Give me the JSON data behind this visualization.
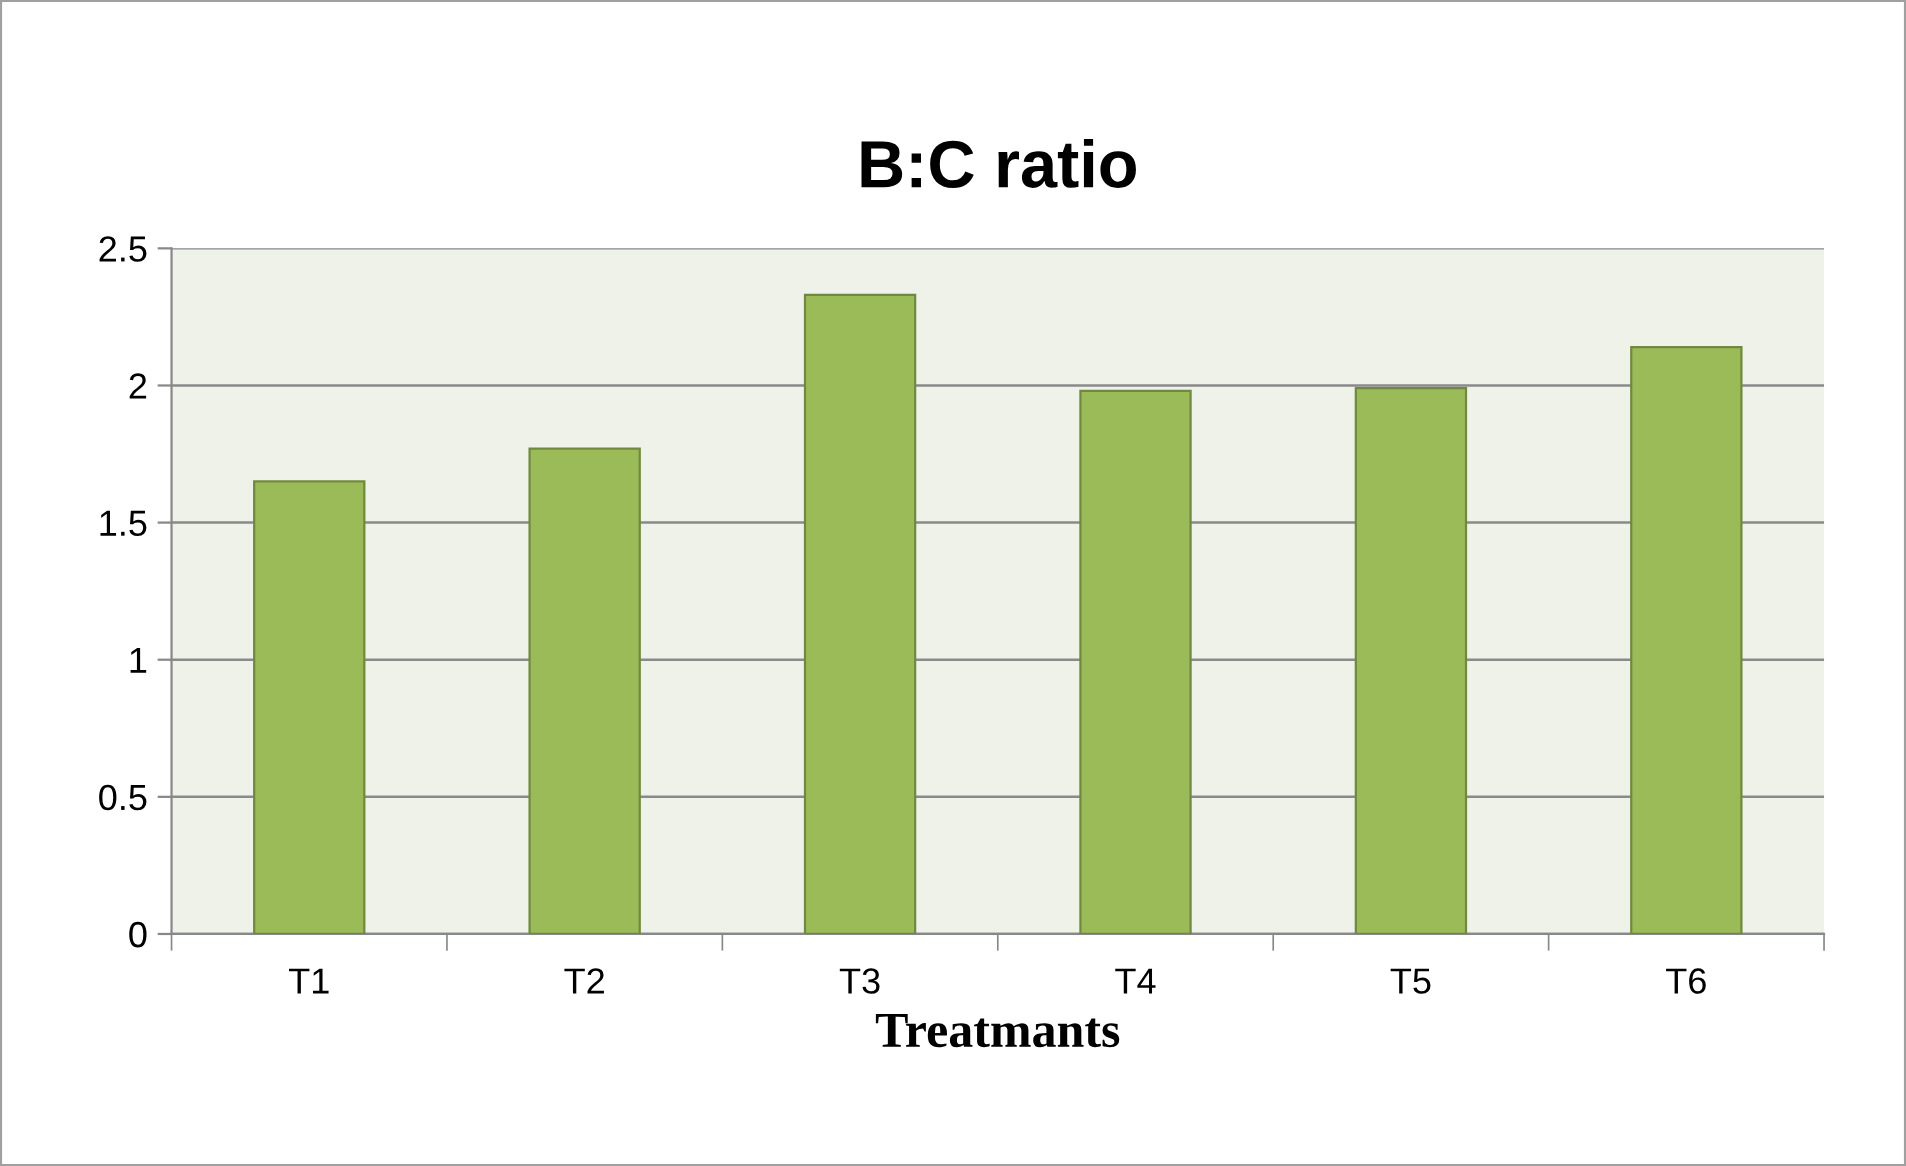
{
  "chart_data": {
    "type": "bar",
    "title": "B:C ratio",
    "xlabel": "Treatmants",
    "categories": [
      "T1",
      "T2",
      "T3",
      "T4",
      "T5",
      "T6"
    ],
    "values": [
      1.65,
      1.77,
      2.33,
      1.98,
      1.99,
      2.14
    ],
    "color": "#9bbb59",
    "ylim": [
      0,
      2.5
    ],
    "yticks": [
      0,
      0.5,
      1,
      1.5,
      2,
      2.5
    ],
    "grid": "y",
    "legend": false
  }
}
